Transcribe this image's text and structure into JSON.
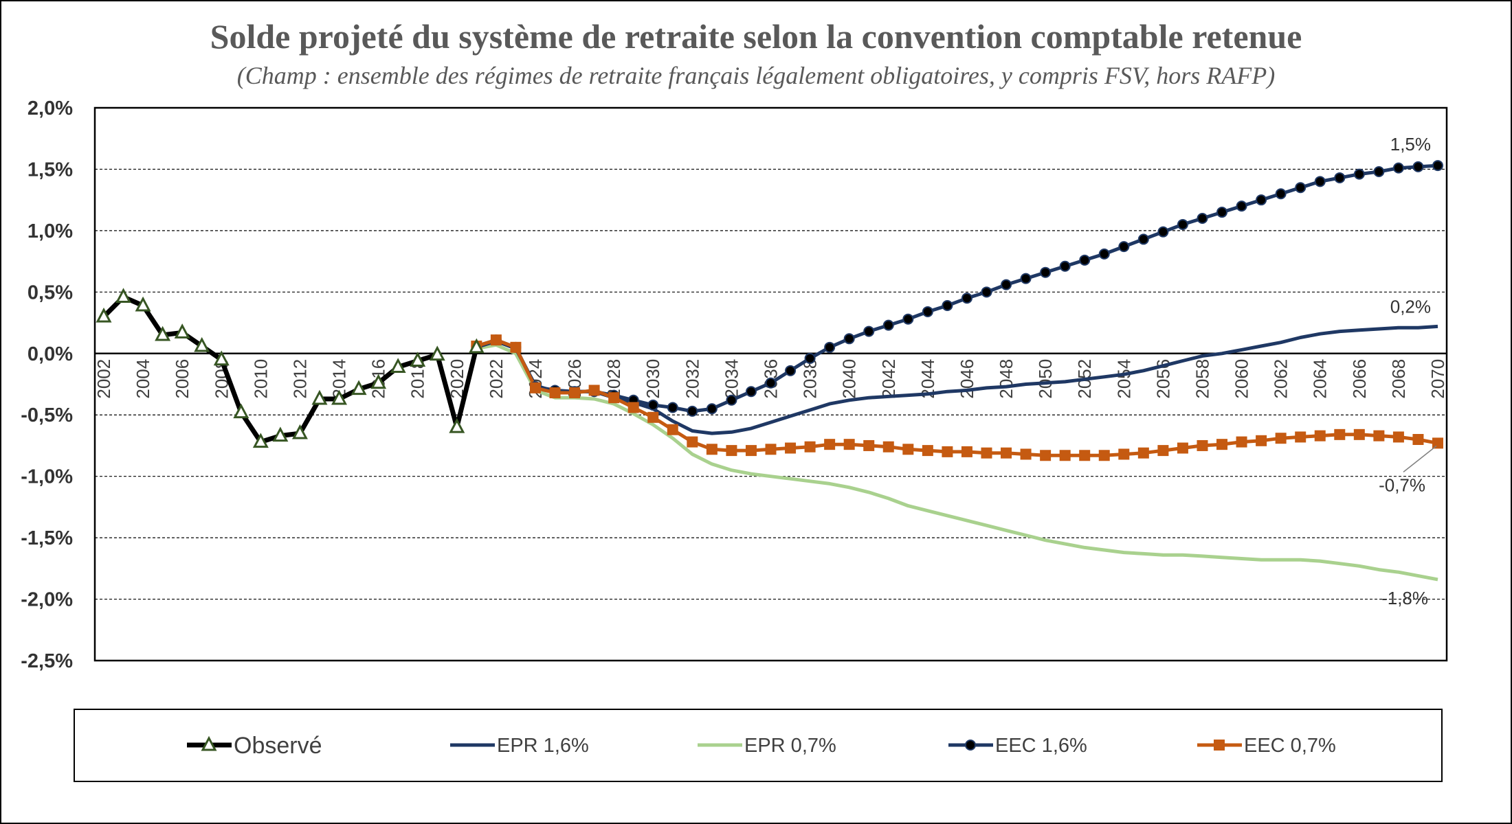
{
  "chart_data": {
    "type": "line",
    "title": "Solde projeté du système de retraite selon la convention comptable retenue",
    "subtitle": "(Champ : ensemble des régimes de retraite français légalement obligatoires, y compris FSV, hors RAFP)",
    "ylim": [
      -2.5,
      2.0
    ],
    "xlim": [
      2002,
      2070
    ],
    "yticks": [
      2.0,
      1.5,
      1.0,
      0.5,
      0.0,
      -0.5,
      -1.0,
      -1.5,
      -2.0,
      -2.5
    ],
    "ytick_labels": [
      "2,0%",
      "1,5%",
      "1,0%",
      "0,5%",
      "0,0%",
      "-0,5%",
      "-1,0%",
      "-1,5%",
      "-2,0%",
      "-2,5%"
    ],
    "xtick_labels": [
      "2002",
      "2004",
      "2006",
      "2008",
      "2010",
      "2012",
      "2014",
      "2016",
      "2018",
      "2020",
      "2022",
      "2024",
      "2026",
      "2028",
      "2030",
      "2032",
      "2034",
      "2036",
      "2038",
      "2040",
      "2042",
      "2044",
      "2046",
      "2048",
      "2050",
      "2052",
      "2054",
      "2056",
      "2058",
      "2060",
      "2062",
      "2064",
      "2066",
      "2068",
      "2070"
    ],
    "grid": "horizontal dashed",
    "legend_position": "bottom",
    "series": [
      {
        "name": "Observé",
        "color": "#000000",
        "marker": "triangle",
        "x": [
          2002,
          2003,
          2004,
          2005,
          2006,
          2007,
          2008,
          2009,
          2010,
          2011,
          2012,
          2013,
          2014,
          2015,
          2016,
          2017,
          2018,
          2019,
          2020,
          2021
        ],
        "values": [
          0.3,
          0.46,
          0.39,
          0.15,
          0.17,
          0.06,
          -0.05,
          -0.48,
          -0.72,
          -0.67,
          -0.65,
          -0.37,
          -0.37,
          -0.29,
          -0.24,
          -0.11,
          -0.06,
          -0.01,
          -0.6,
          0.05
        ]
      },
      {
        "name": "EPR 1,6%",
        "color": "#1F3864",
        "marker": "none",
        "x": [
          2021,
          2022,
          2023,
          2024,
          2025,
          2026,
          2027,
          2028,
          2029,
          2030,
          2031,
          2032,
          2033,
          2034,
          2035,
          2036,
          2037,
          2038,
          2039,
          2040,
          2041,
          2042,
          2043,
          2044,
          2045,
          2046,
          2047,
          2048,
          2049,
          2050,
          2051,
          2052,
          2053,
          2054,
          2055,
          2056,
          2057,
          2058,
          2059,
          2060,
          2061,
          2062,
          2063,
          2064,
          2065,
          2066,
          2067,
          2068,
          2069,
          2070
        ],
        "values": [
          0.05,
          0.1,
          0.04,
          -0.26,
          -0.31,
          -0.31,
          -0.31,
          -0.36,
          -0.4,
          -0.45,
          -0.55,
          -0.63,
          -0.65,
          -0.64,
          -0.61,
          -0.56,
          -0.51,
          -0.46,
          -0.41,
          -0.38,
          -0.36,
          -0.35,
          -0.34,
          -0.33,
          -0.31,
          -0.3,
          -0.28,
          -0.27,
          -0.25,
          -0.24,
          -0.23,
          -0.21,
          -0.19,
          -0.17,
          -0.14,
          -0.1,
          -0.06,
          -0.02,
          0.0,
          0.03,
          0.06,
          0.09,
          0.13,
          0.16,
          0.18,
          0.19,
          0.2,
          0.21,
          0.21,
          0.22
        ]
      },
      {
        "name": "EPR 0,7%",
        "color": "#A9D18E",
        "marker": "none",
        "x": [
          2021,
          2022,
          2023,
          2024,
          2025,
          2026,
          2027,
          2028,
          2029,
          2030,
          2031,
          2032,
          2033,
          2034,
          2035,
          2036,
          2037,
          2038,
          2039,
          2040,
          2041,
          2042,
          2043,
          2044,
          2045,
          2046,
          2047,
          2048,
          2049,
          2050,
          2051,
          2052,
          2053,
          2054,
          2055,
          2056,
          2057,
          2058,
          2059,
          2060,
          2061,
          2062,
          2063,
          2064,
          2065,
          2066,
          2067,
          2068,
          2069,
          2070
        ],
        "values": [
          0.04,
          0.07,
          0.0,
          -0.3,
          -0.36,
          -0.36,
          -0.37,
          -0.41,
          -0.49,
          -0.58,
          -0.69,
          -0.82,
          -0.9,
          -0.95,
          -0.98,
          -1.0,
          -1.02,
          -1.04,
          -1.06,
          -1.09,
          -1.13,
          -1.18,
          -1.24,
          -1.28,
          -1.32,
          -1.36,
          -1.4,
          -1.44,
          -1.48,
          -1.52,
          -1.55,
          -1.58,
          -1.6,
          -1.62,
          -1.63,
          -1.64,
          -1.64,
          -1.65,
          -1.66,
          -1.67,
          -1.68,
          -1.68,
          -1.68,
          -1.69,
          -1.71,
          -1.73,
          -1.76,
          -1.78,
          -1.81,
          -1.84
        ]
      },
      {
        "name": "EEC 1,6%",
        "color": "#1F3864",
        "marker": "circle",
        "x": [
          2021,
          2022,
          2023,
          2024,
          2025,
          2026,
          2027,
          2028,
          2029,
          2030,
          2031,
          2032,
          2033,
          2034,
          2035,
          2036,
          2037,
          2038,
          2039,
          2040,
          2041,
          2042,
          2043,
          2044,
          2045,
          2046,
          2047,
          2048,
          2049,
          2050,
          2051,
          2052,
          2053,
          2054,
          2055,
          2056,
          2057,
          2058,
          2059,
          2060,
          2061,
          2062,
          2063,
          2064,
          2065,
          2066,
          2067,
          2068,
          2069,
          2070
        ],
        "values": [
          0.06,
          0.11,
          0.05,
          -0.27,
          -0.3,
          -0.31,
          -0.31,
          -0.34,
          -0.38,
          -0.42,
          -0.44,
          -0.47,
          -0.45,
          -0.38,
          -0.31,
          -0.24,
          -0.14,
          -0.04,
          0.05,
          0.12,
          0.18,
          0.23,
          0.28,
          0.34,
          0.39,
          0.45,
          0.5,
          0.56,
          0.61,
          0.66,
          0.71,
          0.76,
          0.81,
          0.87,
          0.93,
          0.99,
          1.05,
          1.1,
          1.15,
          1.2,
          1.25,
          1.3,
          1.35,
          1.4,
          1.43,
          1.46,
          1.48,
          1.51,
          1.52,
          1.53
        ]
      },
      {
        "name": "EEC 0,7%",
        "color": "#C55A11",
        "marker": "square",
        "x": [
          2021,
          2022,
          2023,
          2024,
          2025,
          2026,
          2027,
          2028,
          2029,
          2030,
          2031,
          2032,
          2033,
          2034,
          2035,
          2036,
          2037,
          2038,
          2039,
          2040,
          2041,
          2042,
          2043,
          2044,
          2045,
          2046,
          2047,
          2048,
          2049,
          2050,
          2051,
          2052,
          2053,
          2054,
          2055,
          2056,
          2057,
          2058,
          2059,
          2060,
          2061,
          2062,
          2063,
          2064,
          2065,
          2066,
          2067,
          2068,
          2069,
          2070
        ],
        "values": [
          0.06,
          0.11,
          0.05,
          -0.28,
          -0.32,
          -0.32,
          -0.3,
          -0.36,
          -0.44,
          -0.52,
          -0.62,
          -0.72,
          -0.78,
          -0.79,
          -0.79,
          -0.78,
          -0.77,
          -0.76,
          -0.74,
          -0.74,
          -0.75,
          -0.76,
          -0.78,
          -0.79,
          -0.8,
          -0.8,
          -0.81,
          -0.81,
          -0.82,
          -0.83,
          -0.83,
          -0.83,
          -0.83,
          -0.82,
          -0.81,
          -0.79,
          -0.77,
          -0.75,
          -0.74,
          -0.72,
          -0.71,
          -0.69,
          -0.68,
          -0.67,
          -0.66,
          -0.66,
          -0.67,
          -0.68,
          -0.7,
          -0.73
        ]
      }
    ],
    "end_labels": [
      {
        "series": "EEC 1,6%",
        "text": "1,5%"
      },
      {
        "series": "EPR 1,6%",
        "text": "0,2%"
      },
      {
        "series": "EEC 0,7%",
        "text": "-0,7%"
      },
      {
        "series": "EPR 0,7%",
        "text": "-1,8%"
      }
    ]
  }
}
